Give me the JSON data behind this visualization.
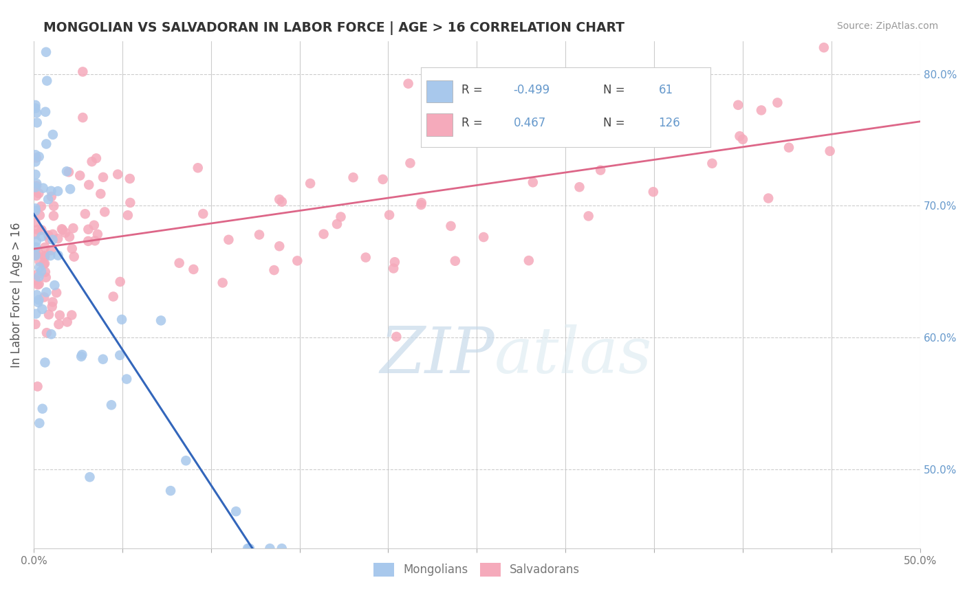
{
  "title": "MONGOLIAN VS SALVADORAN IN LABOR FORCE | AGE > 16 CORRELATION CHART",
  "source_text": "Source: ZipAtlas.com",
  "ylabel": "In Labor Force | Age > 16",
  "xlim": [
    0.0,
    0.5
  ],
  "ylim": [
    0.44,
    0.825
  ],
  "mongolian_R": -0.499,
  "mongolian_N": 61,
  "salvadoran_R": 0.467,
  "salvadoran_N": 126,
  "mongolian_color": "#A8C8EC",
  "salvadoran_color": "#F5AABB",
  "mongolian_line_color": "#3366BB",
  "salvadoran_line_color": "#DD6688",
  "watermark_zip": "ZIP",
  "watermark_atlas": "atlas",
  "watermark_color": "#DDEEFF",
  "background_color": "#FFFFFF",
  "grid_color": "#E8ECF0",
  "right_tick_color": "#6699CC",
  "title_color": "#333333",
  "ylabel_color": "#555555",
  "tick_label_color": "#777777"
}
